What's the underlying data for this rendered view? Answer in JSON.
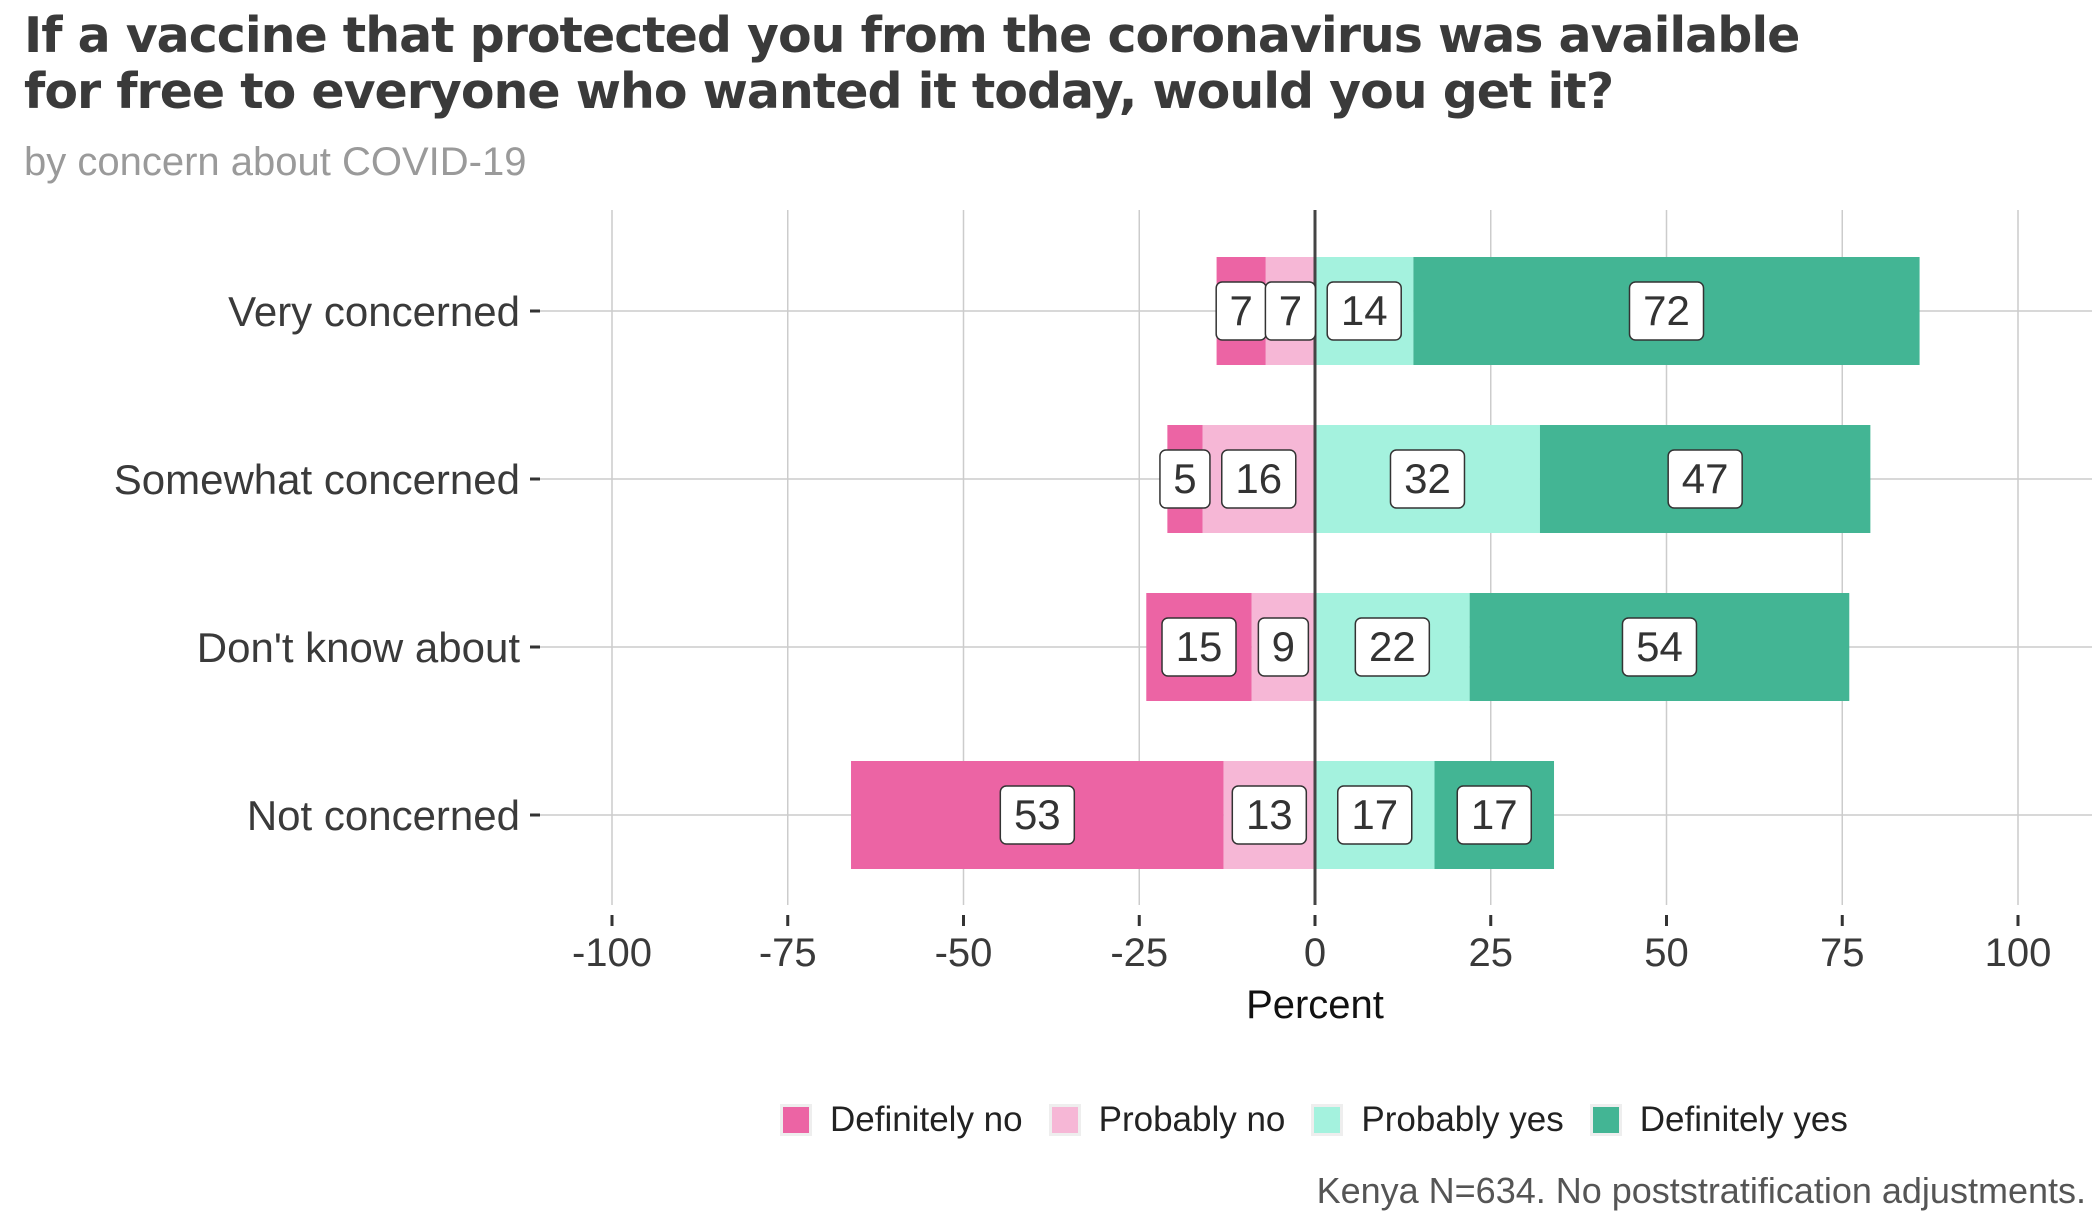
{
  "title_line1": "If a vaccine that protected you from the coronavirus was available",
  "title_line2": "for free to everyone who wanted it today, would you get it?",
  "subtitle": "by concern about COVID-19",
  "caption": "Kenya N=634. No poststratification adjustments.",
  "colors": {
    "definitely_no": "#ec64a4",
    "probably_no": "#f6b7d6",
    "probably_yes": "#a4f2de",
    "definitely_yes": "#43b594"
  },
  "chart_data": {
    "type": "bar",
    "orientation": "horizontal",
    "stacked": "diverging",
    "categories": [
      "Very concerned",
      "Somewhat concerned",
      "Don't know about",
      "Not concerned"
    ],
    "series": [
      {
        "name": "Definitely no",
        "values": [
          7,
          5,
          15,
          53
        ]
      },
      {
        "name": "Probably no",
        "values": [
          7,
          16,
          9,
          13
        ]
      },
      {
        "name": "Probably yes",
        "values": [
          14,
          32,
          22,
          17
        ]
      },
      {
        "name": "Definitely yes",
        "values": [
          72,
          47,
          54,
          17
        ]
      }
    ],
    "xlabel": "Percent",
    "ylabel": "",
    "xlim": [
      -100,
      110
    ],
    "xticks": [
      -100,
      -75,
      -50,
      -25,
      0,
      25,
      50,
      75,
      100
    ],
    "xtick_labels": [
      "-100",
      "-75",
      "-50",
      "-25",
      "0",
      "25",
      "50",
      "75",
      "100"
    ],
    "grid": true,
    "legend": "bottom"
  }
}
